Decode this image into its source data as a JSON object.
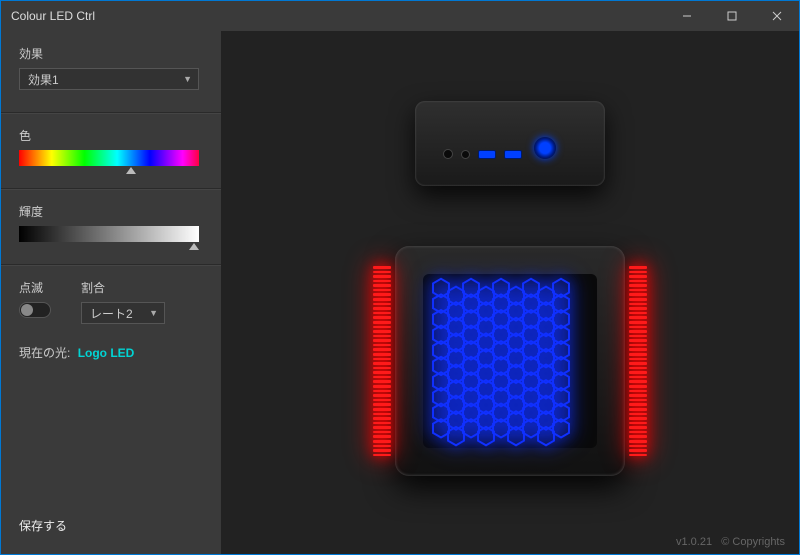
{
  "window": {
    "title": "Colour LED Ctrl"
  },
  "sidebar": {
    "effect_label": "効果",
    "effect_value": "効果1",
    "color_label": "色",
    "hue_thumb_pos_pct": 62,
    "brightness_label": "輝度",
    "brightness_thumb_pos_pct": 97,
    "blink_label": "点滅",
    "blink_on": false,
    "rate_label": "割合",
    "rate_value": "レート2",
    "current_light_label": "現在の光:",
    "current_light_value": "Logo LED",
    "save_label": "保存する"
  },
  "preview": {
    "front_power_color": "#0040ff",
    "usb_color": "#0040ff",
    "hex_glow_color": "#1030ff",
    "side_strip_color": "#ff1a1a"
  },
  "footer": {
    "version": "v1.0.21",
    "copyright": "© Copyrights"
  },
  "colors": {
    "window_bg": "#2a2a2a",
    "sidebar_bg": "#3a3a3a",
    "preview_bg": "#222222",
    "text_muted": "#bbbbbb",
    "accent_cyan": "#00d4d4"
  }
}
